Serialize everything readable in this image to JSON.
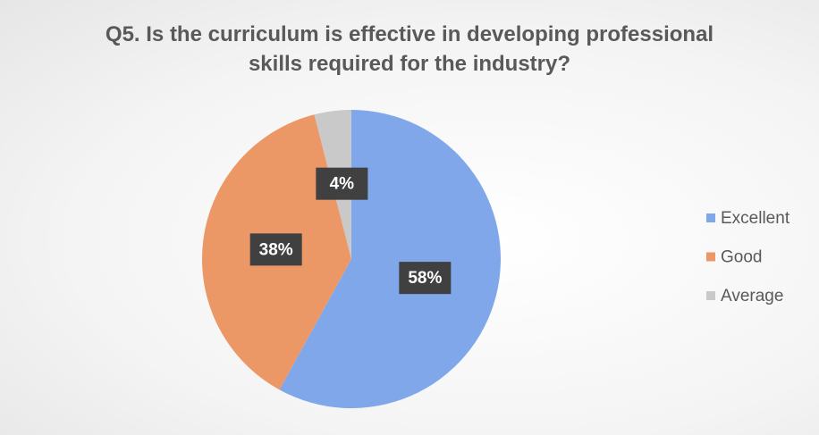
{
  "chart_data": {
    "type": "pie",
    "title": "Q5. Is the curriculum is effective in developing professional skills required for the industry?",
    "categories": [
      "Excellent",
      "Good",
      "Average"
    ],
    "values": [
      58,
      38,
      4
    ],
    "value_labels": [
      "58%",
      "38%",
      "4%"
    ],
    "colors": [
      "#7fa7ea",
      "#ec9766",
      "#c9c9c9"
    ],
    "legend": "right"
  }
}
